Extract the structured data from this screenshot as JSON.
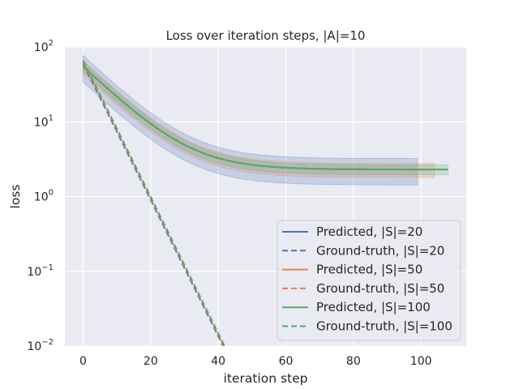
{
  "chart_data": {
    "type": "line",
    "title": "Loss over iteration steps, |A|=10",
    "xlabel": "iteration step",
    "ylabel": "loss",
    "xscale": "linear",
    "yscale": "log",
    "xlim": [
      -5.4,
      113.4
    ],
    "ylim": [
      0.01,
      100
    ],
    "xticks": [
      0,
      20,
      40,
      60,
      80,
      100
    ],
    "yticks": [
      {
        "value": 0.01,
        "base": "10",
        "exp": "−2"
      },
      {
        "value": 0.1,
        "base": "10",
        "exp": "−1"
      },
      {
        "value": 1,
        "base": "10",
        "exp": "0"
      },
      {
        "value": 10,
        "base": "10",
        "exp": "1"
      },
      {
        "value": 100,
        "base": "10",
        "exp": "2"
      }
    ],
    "grid": true,
    "background": "#eaeaf2",
    "legend_position": "lower-right",
    "series": [
      {
        "name": "Predicted, |S|=20",
        "style": "solid",
        "color": "#4c72b0",
        "x_end": 99,
        "start": 55,
        "plateau": 2.3,
        "decay": 10,
        "band_low": 0.62,
        "band_high": 1.4
      },
      {
        "name": "Ground-truth, |S|=20",
        "style": "dashed",
        "color": "#4c72b0",
        "x_end": 99,
        "start": 60,
        "rate": 0.21
      },
      {
        "name": "Predicted, |S|=50",
        "style": "solid",
        "color": "#dd8452",
        "x_end": 104,
        "start": 55,
        "plateau": 2.3,
        "decay": 10,
        "band_low": 0.78,
        "band_high": 1.2
      },
      {
        "name": "Ground-truth, |S|=50",
        "style": "dashed",
        "color": "#dd8452",
        "x_end": 104,
        "start": 63,
        "rate": 0.21
      },
      {
        "name": "Predicted, |S|=100",
        "style": "solid",
        "color": "#55a868",
        "x_end": 108,
        "start": 55,
        "plateau": 2.3,
        "decay": 10,
        "band_low": 0.85,
        "band_high": 1.15
      },
      {
        "name": "Ground-truth, |S|=100",
        "style": "dashed",
        "color": "#55a868",
        "x_end": 108,
        "start": 66,
        "rate": 0.21
      }
    ]
  }
}
